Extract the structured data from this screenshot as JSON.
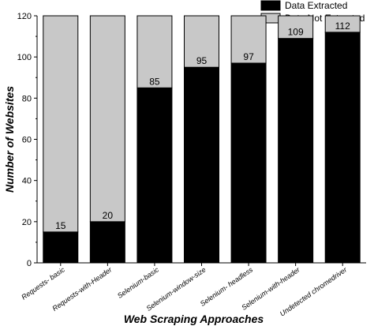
{
  "chart_data": {
    "type": "bar",
    "stacked": true,
    "title": "",
    "xlabel": "Web Scraping Approaches",
    "ylabel": "Number of Websites",
    "ylim": [
      0,
      120
    ],
    "yticks": [
      0,
      20,
      40,
      60,
      80,
      100,
      120
    ],
    "categories": [
      "Requests- basic",
      "Requests-with-Header",
      "Selenium-basic",
      "Selenium-window-size",
      "Selenium- headless",
      "Selenium-with-header",
      "Undetected chromedriver"
    ],
    "series": [
      {
        "name": "Data Extracted",
        "color": "#000000",
        "values": [
          15,
          20,
          85,
          95,
          97,
          109,
          112
        ]
      },
      {
        "name": "Data Not Extracted",
        "color": "#c8c8c8",
        "values": [
          105,
          100,
          35,
          25,
          23,
          11,
          8
        ]
      }
    ],
    "data_labels": [
      "15",
      "20",
      "85",
      "95",
      "97",
      "109",
      "112"
    ],
    "legend_position": "top-right",
    "grid": false
  }
}
